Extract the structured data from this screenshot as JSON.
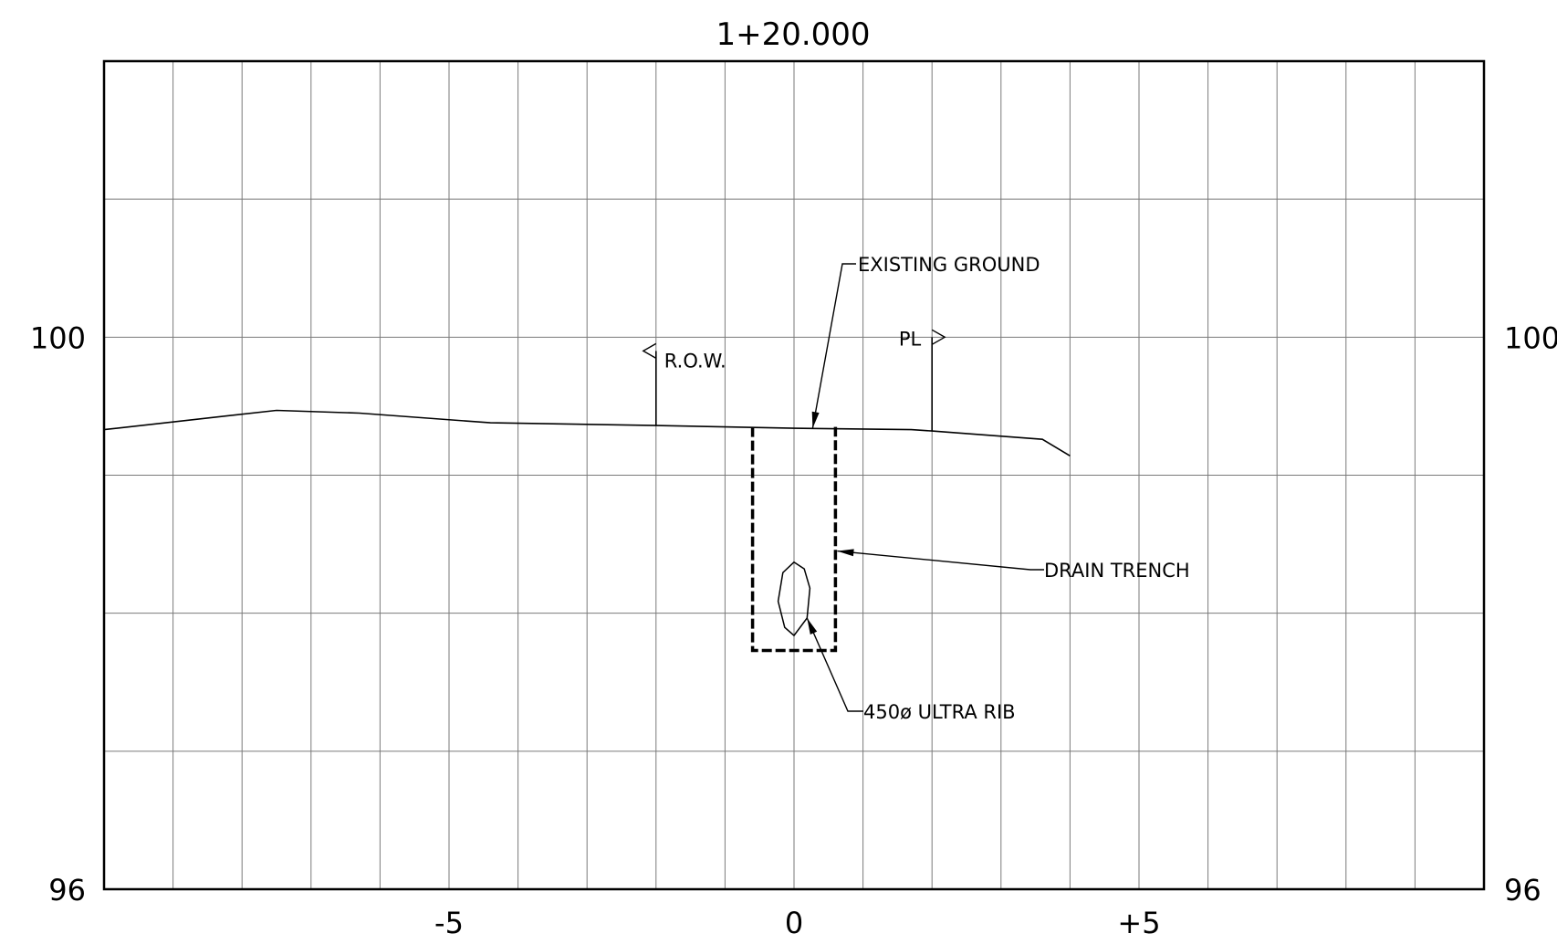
{
  "title": "1+20.000",
  "colors": {
    "line": "#000000",
    "grid": "#7a7a7a",
    "background": "#ffffff"
  },
  "axes": {
    "x": {
      "range": [
        -10,
        10
      ],
      "grid_step": 1,
      "tick_labels": [
        "-5",
        "0",
        "+5"
      ],
      "tick_values": [
        -5,
        0,
        5
      ]
    },
    "y": {
      "range": [
        96,
        102
      ],
      "grid_step": 1,
      "left_labels": [
        "100",
        "96"
      ],
      "right_labels": [
        "100",
        "96"
      ],
      "tick_values": [
        100,
        96
      ]
    }
  },
  "annotations": {
    "row": "R.O.W.",
    "pl": "PL",
    "existing_ground": "EXISTING GROUND",
    "drain_trench": "DRAIN TRENCH",
    "pipe": "450ø ULTRA RIB"
  },
  "ground_profile": [
    [
      -10,
      99.33
    ],
    [
      -7.5,
      99.47
    ],
    [
      -6.3,
      99.45
    ],
    [
      -4.4,
      99.38
    ],
    [
      -2.0,
      99.36
    ],
    [
      0,
      99.34
    ],
    [
      1.7,
      99.33
    ],
    [
      2.0,
      99.32
    ],
    [
      3.6,
      99.26
    ],
    [
      4.0,
      99.14
    ]
  ],
  "row_marker": {
    "x": -2.0,
    "top": 99.9,
    "bottom": 99.36
  },
  "pl_marker": {
    "x": 2.0,
    "top": 100.0,
    "bottom": 99.32
  },
  "trench": {
    "x_left": -0.6,
    "x_right": 0.6,
    "top": 99.35,
    "bottom": 97.73
  },
  "pipe_shape": {
    "cx": 0,
    "cy": 98.1,
    "rx": 0.27,
    "ry": 0.27
  }
}
